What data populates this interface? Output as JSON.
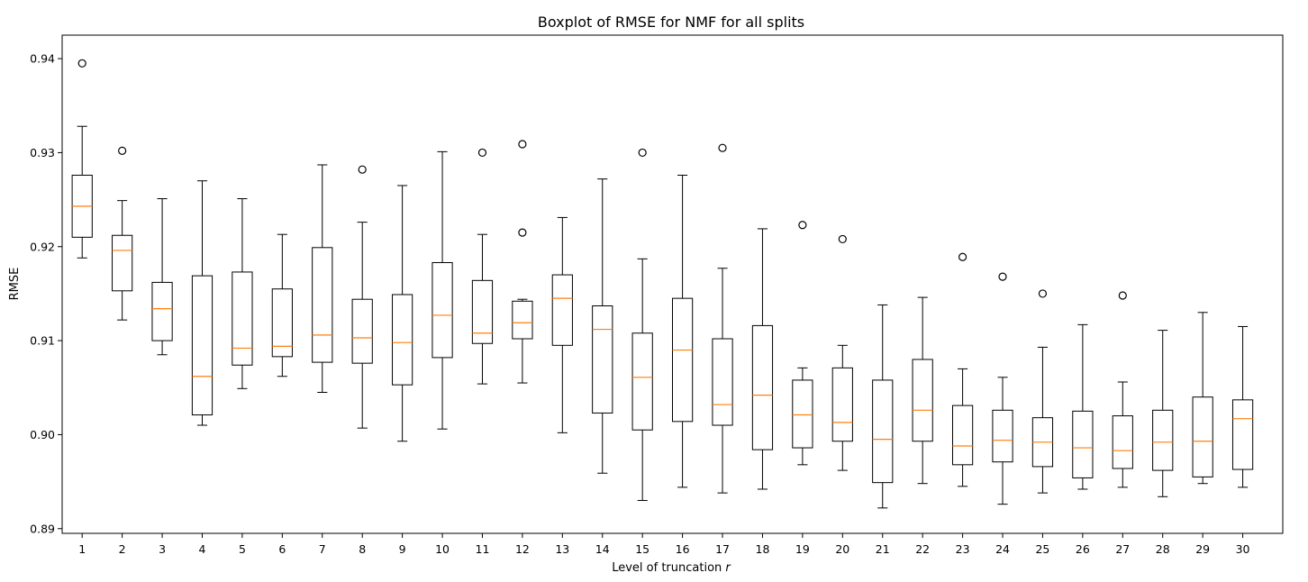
{
  "chart_data": {
    "type": "boxplot",
    "title": "Boxplot of RMSE for NMF for all splits",
    "xlabel": "Level of truncation ",
    "xlabel_var": "r",
    "ylabel": "RMSE",
    "ylim": [
      0.8895,
      0.9425
    ],
    "yticks": [
      "0.89",
      "0.90",
      "0.91",
      "0.92",
      "0.93",
      "0.94"
    ],
    "categories": [
      "1",
      "2",
      "3",
      "4",
      "5",
      "6",
      "7",
      "8",
      "9",
      "10",
      "11",
      "12",
      "13",
      "14",
      "15",
      "16",
      "17",
      "18",
      "19",
      "20",
      "21",
      "22",
      "23",
      "24",
      "25",
      "26",
      "27",
      "28",
      "29",
      "30"
    ],
    "box_color": "#000000",
    "median_color": "#ff7f0e",
    "boxes": [
      {
        "label": "1",
        "whislo": 0.9188,
        "q1": 0.921,
        "med": 0.9243,
        "q3": 0.9276,
        "whishi": 0.9328,
        "fliers": [
          0.9395
        ]
      },
      {
        "label": "2",
        "whislo": 0.9122,
        "q1": 0.9153,
        "med": 0.9196,
        "q3": 0.9212,
        "whishi": 0.9249,
        "fliers": [
          0.9302
        ]
      },
      {
        "label": "3",
        "whislo": 0.9085,
        "q1": 0.91,
        "med": 0.9134,
        "q3": 0.9162,
        "whishi": 0.9251,
        "fliers": []
      },
      {
        "label": "4",
        "whislo": 0.901,
        "q1": 0.9021,
        "med": 0.9062,
        "q3": 0.9169,
        "whishi": 0.927,
        "fliers": []
      },
      {
        "label": "5",
        "whislo": 0.9049,
        "q1": 0.9074,
        "med": 0.9092,
        "q3": 0.9173,
        "whishi": 0.9251,
        "fliers": []
      },
      {
        "label": "6",
        "whislo": 0.9062,
        "q1": 0.9083,
        "med": 0.9094,
        "q3": 0.9155,
        "whishi": 0.9213,
        "fliers": []
      },
      {
        "label": "7",
        "whislo": 0.9045,
        "q1": 0.9077,
        "med": 0.9106,
        "q3": 0.9199,
        "whishi": 0.9287,
        "fliers": []
      },
      {
        "label": "8",
        "whislo": 0.9007,
        "q1": 0.9076,
        "med": 0.9103,
        "q3": 0.9144,
        "whishi": 0.9226,
        "fliers": [
          0.9282
        ]
      },
      {
        "label": "9",
        "whislo": 0.8993,
        "q1": 0.9053,
        "med": 0.9098,
        "q3": 0.9149,
        "whishi": 0.9265,
        "fliers": []
      },
      {
        "label": "10",
        "whislo": 0.9006,
        "q1": 0.9082,
        "med": 0.9127,
        "q3": 0.9183,
        "whishi": 0.9301,
        "fliers": []
      },
      {
        "label": "11",
        "whislo": 0.9054,
        "q1": 0.9097,
        "med": 0.9108,
        "q3": 0.9164,
        "whishi": 0.9213,
        "fliers": [
          0.93
        ]
      },
      {
        "label": "12",
        "whislo": 0.9055,
        "q1": 0.9102,
        "med": 0.9119,
        "q3": 0.9142,
        "whishi": 0.9144,
        "fliers": [
          0.9309,
          0.9215
        ]
      },
      {
        "label": "13",
        "whislo": 0.9002,
        "q1": 0.9095,
        "med": 0.9145,
        "q3": 0.917,
        "whishi": 0.9231,
        "fliers": []
      },
      {
        "label": "14",
        "whislo": 0.8959,
        "q1": 0.9023,
        "med": 0.9112,
        "q3": 0.9137,
        "whishi": 0.9272,
        "fliers": []
      },
      {
        "label": "15",
        "whislo": 0.893,
        "q1": 0.9005,
        "med": 0.9061,
        "q3": 0.9108,
        "whishi": 0.9187,
        "fliers": [
          0.93
        ]
      },
      {
        "label": "16",
        "whislo": 0.8944,
        "q1": 0.9014,
        "med": 0.909,
        "q3": 0.9145,
        "whishi": 0.9276,
        "fliers": []
      },
      {
        "label": "17",
        "whislo": 0.8938,
        "q1": 0.901,
        "med": 0.9032,
        "q3": 0.9102,
        "whishi": 0.9177,
        "fliers": [
          0.9305
        ]
      },
      {
        "label": "18",
        "whislo": 0.8942,
        "q1": 0.8984,
        "med": 0.9042,
        "q3": 0.9116,
        "whishi": 0.9219,
        "fliers": []
      },
      {
        "label": "19",
        "whislo": 0.8968,
        "q1": 0.8986,
        "med": 0.9021,
        "q3": 0.9058,
        "whishi": 0.9071,
        "fliers": [
          0.9223
        ]
      },
      {
        "label": "20",
        "whislo": 0.8962,
        "q1": 0.8993,
        "med": 0.9013,
        "q3": 0.9071,
        "whishi": 0.9095,
        "fliers": [
          0.9208
        ]
      },
      {
        "label": "21",
        "whislo": 0.8922,
        "q1": 0.8949,
        "med": 0.8995,
        "q3": 0.9058,
        "whishi": 0.9138,
        "fliers": []
      },
      {
        "label": "22",
        "whislo": 0.8948,
        "q1": 0.8993,
        "med": 0.9026,
        "q3": 0.908,
        "whishi": 0.9146,
        "fliers": []
      },
      {
        "label": "23",
        "whislo": 0.8945,
        "q1": 0.8968,
        "med": 0.8988,
        "q3": 0.9031,
        "whishi": 0.907,
        "fliers": [
          0.9189
        ]
      },
      {
        "label": "24",
        "whislo": 0.8926,
        "q1": 0.8971,
        "med": 0.8994,
        "q3": 0.9026,
        "whishi": 0.9061,
        "fliers": [
          0.9168
        ]
      },
      {
        "label": "25",
        "whislo": 0.8938,
        "q1": 0.8966,
        "med": 0.8992,
        "q3": 0.9018,
        "whishi": 0.9093,
        "fliers": [
          0.915
        ]
      },
      {
        "label": "26",
        "whislo": 0.8942,
        "q1": 0.8954,
        "med": 0.8986,
        "q3": 0.9025,
        "whishi": 0.9117,
        "fliers": []
      },
      {
        "label": "27",
        "whislo": 0.8944,
        "q1": 0.8964,
        "med": 0.8983,
        "q3": 0.902,
        "whishi": 0.9056,
        "fliers": [
          0.9148
        ]
      },
      {
        "label": "28",
        "whislo": 0.8934,
        "q1": 0.8962,
        "med": 0.8992,
        "q3": 0.9026,
        "whishi": 0.9111,
        "fliers": []
      },
      {
        "label": "29",
        "whislo": 0.8948,
        "q1": 0.8955,
        "med": 0.8993,
        "q3": 0.904,
        "whishi": 0.913,
        "fliers": []
      },
      {
        "label": "30",
        "whislo": 0.8944,
        "q1": 0.8963,
        "med": 0.9017,
        "q3": 0.9037,
        "whishi": 0.9115,
        "fliers": []
      }
    ]
  }
}
